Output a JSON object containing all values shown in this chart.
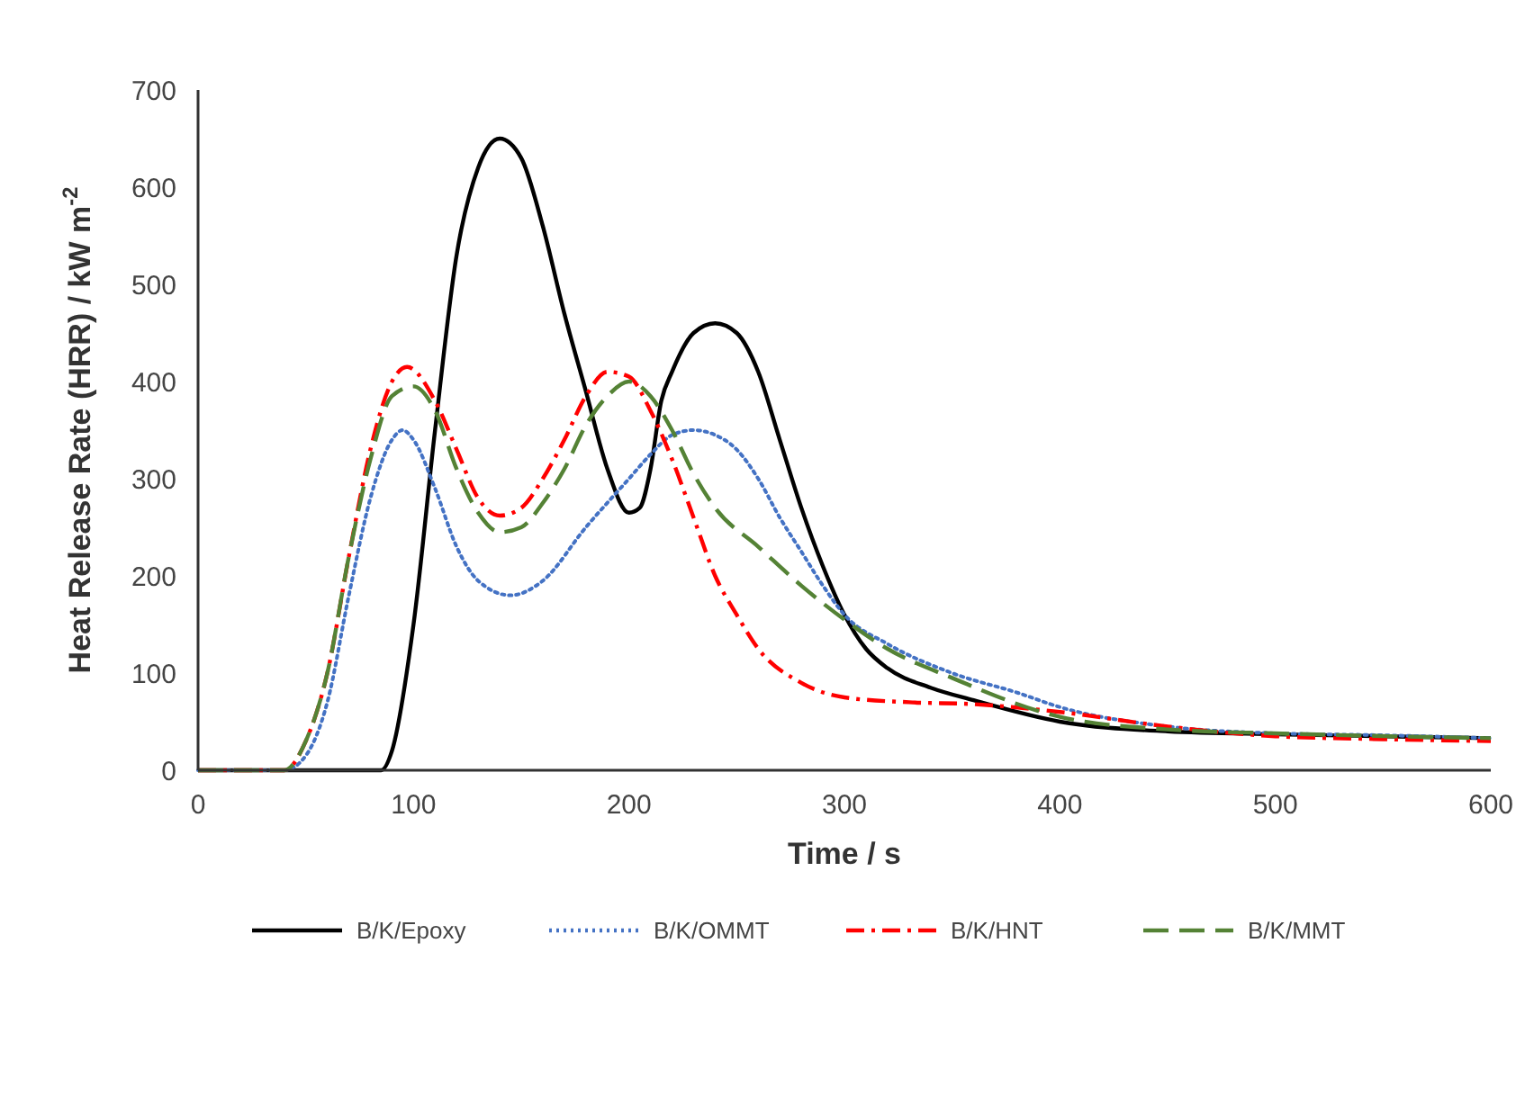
{
  "chart_data": {
    "type": "line",
    "xlabel": "Time / s",
    "ylabel": "Heat Release Rate (HRR) / kW m$^{-2}$",
    "xlim": [
      0,
      600
    ],
    "ylim": [
      0,
      700
    ],
    "xticks": [
      0,
      100,
      200,
      300,
      400,
      500,
      600
    ],
    "yticks": [
      0,
      100,
      200,
      300,
      400,
      500,
      600,
      700
    ],
    "grid": false,
    "legend": "bottom",
    "series": [
      {
        "name": "B/K/Epoxy",
        "color": "#000000",
        "line_style": "solid",
        "x": [
          0,
          85,
          90,
          100,
          110,
          120,
          130,
          140,
          150,
          160,
          170,
          180,
          190,
          200,
          205,
          210,
          215,
          220,
          230,
          240,
          250,
          260,
          270,
          280,
          290,
          300,
          310,
          320,
          340,
          360,
          400,
          450,
          500,
          550,
          600
        ],
        "values": [
          0,
          0,
          20,
          150,
          350,
          530,
          620,
          650,
          630,
          560,
          470,
          390,
          310,
          265,
          270,
          310,
          380,
          410,
          450,
          460,
          450,
          410,
          340,
          270,
          210,
          160,
          125,
          105,
          85,
          72,
          50,
          40,
          37,
          35,
          33
        ]
      },
      {
        "name": "B/K/OMMT",
        "color": "#4472c4",
        "line_style": "dotted",
        "x": [
          0,
          40,
          50,
          60,
          70,
          80,
          90,
          95,
          100,
          110,
          120,
          130,
          145,
          160,
          180,
          200,
          210,
          220,
          230,
          240,
          250,
          260,
          270,
          280,
          290,
          300,
          320,
          350,
          380,
          400,
          450,
          500,
          550,
          600
        ],
        "values": [
          0,
          0,
          15,
          70,
          180,
          280,
          340,
          350,
          340,
          290,
          230,
          195,
          180,
          195,
          250,
          300,
          325,
          345,
          350,
          345,
          330,
          300,
          260,
          225,
          190,
          160,
          130,
          100,
          80,
          65,
          45,
          38,
          36,
          33
        ]
      },
      {
        "name": "B/K/HNT",
        "color": "#ff0000",
        "line_style": "dashdot",
        "x": [
          0,
          40,
          50,
          60,
          70,
          80,
          90,
          97,
          110,
          120,
          130,
          140,
          150,
          160,
          170,
          180,
          190,
          200,
          210,
          220,
          230,
          240,
          250,
          260,
          280,
          300,
          330,
          360,
          400,
          450,
          500,
          550,
          600
        ],
        "values": [
          0,
          0,
          30,
          100,
          220,
          330,
          400,
          415,
          380,
          330,
          280,
          262,
          270,
          300,
          340,
          385,
          410,
          405,
          370,
          320,
          260,
          200,
          160,
          125,
          90,
          75,
          70,
          68,
          60,
          45,
          35,
          32,
          30
        ]
      },
      {
        "name": "B/K/MMT",
        "color": "#548235",
        "line_style": "dashed",
        "x": [
          0,
          40,
          50,
          60,
          70,
          80,
          90,
          100,
          110,
          120,
          130,
          140,
          150,
          160,
          170,
          180,
          190,
          200,
          210,
          220,
          230,
          240,
          260,
          280,
          300,
          320,
          350,
          400,
          450,
          500,
          600
        ],
        "values": [
          0,
          0,
          30,
          100,
          220,
          320,
          385,
          395,
          370,
          310,
          265,
          245,
          250,
          275,
          310,
          355,
          385,
          400,
          385,
          350,
          305,
          270,
          230,
          190,
          155,
          125,
          95,
          55,
          42,
          38,
          33
        ]
      }
    ]
  }
}
